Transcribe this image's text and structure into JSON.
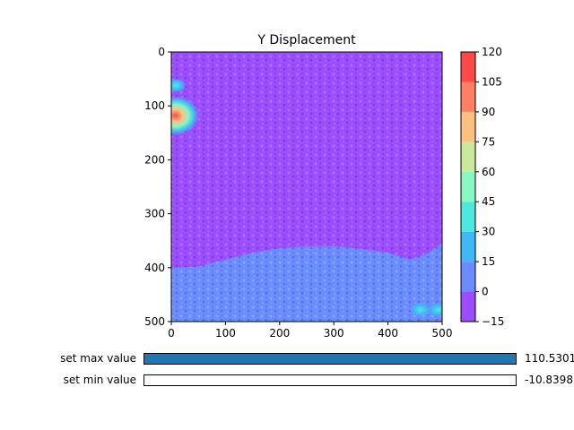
{
  "chart_data": {
    "type": "heatmap",
    "title": "Y Displacement",
    "xlabel": "",
    "ylabel": "",
    "xlim": [
      0,
      500
    ],
    "ylim": [
      500,
      0
    ],
    "x_ticks": [
      "0",
      "100",
      "200",
      "300",
      "400",
      "500"
    ],
    "y_ticks": [
      "0",
      "100",
      "200",
      "300",
      "400",
      "500"
    ],
    "colorbar": {
      "levels": [
        -15,
        0,
        15,
        30,
        45,
        60,
        75,
        90,
        105,
        120
      ],
      "tick_labels": [
        "−15",
        "0",
        "15",
        "30",
        "45",
        "60",
        "75",
        "90",
        "105",
        "120"
      ],
      "colors": [
        "#9b4dff",
        "#6a8cff",
        "#40b8f5",
        "#4ee8e0",
        "#88f7c0",
        "#c9ea9c",
        "#ffbf80",
        "#ff8062",
        "#ff4848"
      ]
    },
    "colormap": "rainbow",
    "regions": [
      {
        "level_range": [
          -15,
          0
        ],
        "description_color": "#9b4dff"
      },
      {
        "level_range": [
          0,
          15
        ],
        "description_color": "#6a8cff"
      }
    ],
    "hotspots": [
      {
        "x": 8,
        "y": 118,
        "peak": 110
      },
      {
        "x": 8,
        "y": 62,
        "peak": 20
      },
      {
        "x": 460,
        "y": 478,
        "peak": 20
      },
      {
        "x": 493,
        "y": 478,
        "peak": 30
      }
    ],
    "boundary": [
      [
        0,
        400
      ],
      [
        50,
        398
      ],
      [
        100,
        385
      ],
      [
        150,
        372
      ],
      [
        200,
        364
      ],
      [
        250,
        360
      ],
      [
        300,
        360
      ],
      [
        350,
        365
      ],
      [
        400,
        372
      ],
      [
        440,
        385
      ],
      [
        470,
        375
      ],
      [
        500,
        355
      ]
    ]
  },
  "sliders": [
    {
      "label": "set max value",
      "value": "110.5301",
      "fraction": 1.0
    },
    {
      "label": "set min value",
      "value": "-10.8398",
      "fraction": 0.0
    }
  ]
}
